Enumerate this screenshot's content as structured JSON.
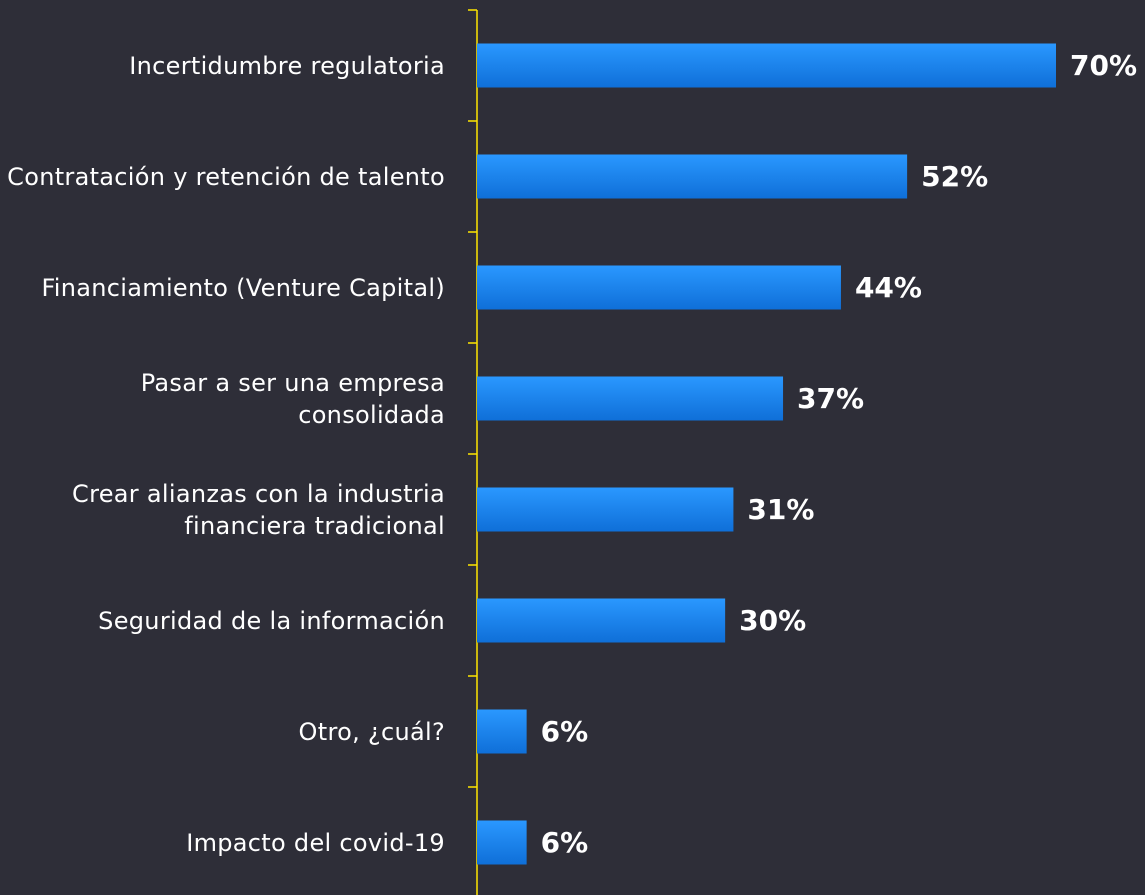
{
  "chart_data": {
    "type": "bar",
    "orientation": "horizontal",
    "categories": [
      "Incertidumbre regulatoria",
      "Contratación y retención de talento",
      "Financiamiento (Venture Capital)",
      "Pasar a ser una empresa consolidada",
      "Crear alianzas con la industria financiera tradicional",
      "Seguridad de la información",
      "Otro, ¿cuál?",
      "Impacto del covid-19"
    ],
    "values": [
      70,
      52,
      44,
      37,
      31,
      30,
      6,
      6
    ],
    "value_labels": [
      "70%",
      "52%",
      "44%",
      "37%",
      "31%",
      "30%",
      "6%",
      "6%"
    ],
    "color": "#1a8cff"
  }
}
